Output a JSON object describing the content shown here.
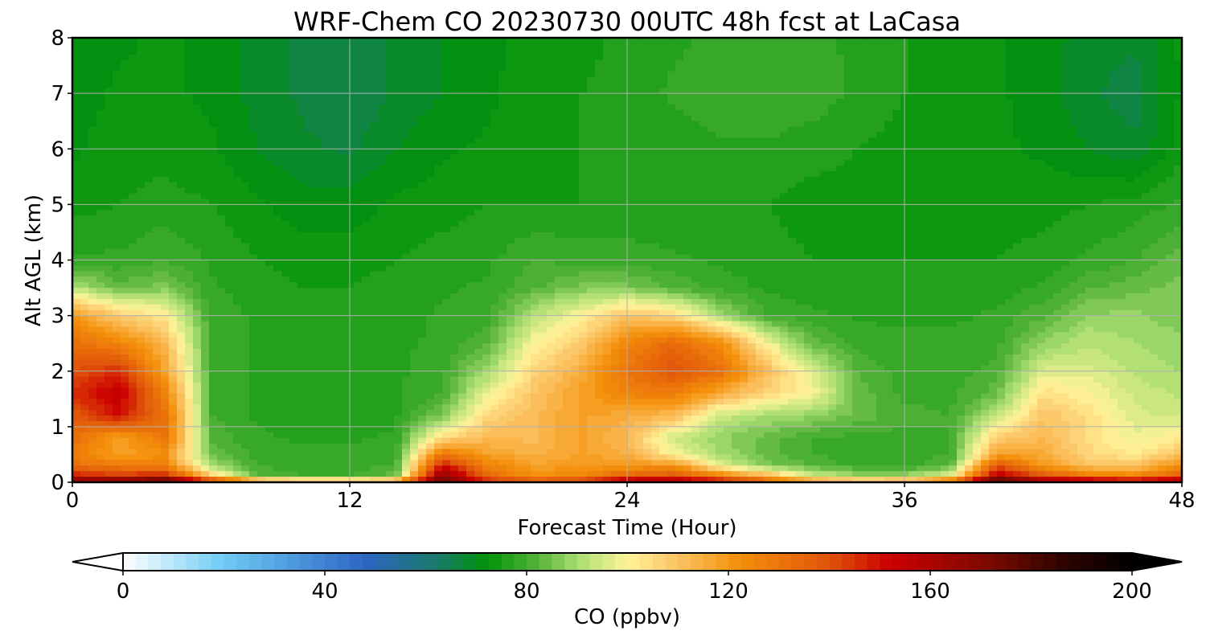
{
  "chart_data": {
    "type": "heatmap",
    "title": "WRF-Chem CO  20230730 00UTC 48h fcst at LaCasa",
    "xlabel": "Forecast Time (Hour)",
    "ylabel": "Alt AGL (km)",
    "xlim": [
      0,
      48
    ],
    "ylim": [
      0,
      8
    ],
    "xticks": [
      0,
      12,
      24,
      36,
      48
    ],
    "yticks": [
      0,
      1,
      2,
      3,
      4,
      5,
      6,
      7,
      8
    ],
    "grid": true,
    "colorbar": {
      "label": "CO  (ppbv)",
      "range": [
        0,
        200
      ],
      "ticks": [
        0,
        40,
        80,
        120,
        160,
        200
      ],
      "extend": "both",
      "stops": [
        {
          "v": 0,
          "c": "#ffffff"
        },
        {
          "v": 20,
          "c": "#6ecbf5"
        },
        {
          "v": 48,
          "c": "#2d64c4"
        },
        {
          "v": 62,
          "c": "#1b7a6c"
        },
        {
          "v": 72,
          "c": "#00920a"
        },
        {
          "v": 82,
          "c": "#52b23a"
        },
        {
          "v": 90,
          "c": "#a8dd70"
        },
        {
          "v": 100,
          "c": "#fff49a"
        },
        {
          "v": 110,
          "c": "#fcc363"
        },
        {
          "v": 122,
          "c": "#f4900a"
        },
        {
          "v": 140,
          "c": "#e0540a"
        },
        {
          "v": 152,
          "c": "#cc0000"
        },
        {
          "v": 172,
          "c": "#7a0a00"
        },
        {
          "v": 186,
          "c": "#300400"
        },
        {
          "v": 200,
          "c": "#000000"
        }
      ]
    },
    "x": [
      0,
      2,
      4,
      6,
      8,
      10,
      12,
      14,
      16,
      18,
      20,
      22,
      24,
      26,
      28,
      30,
      32,
      34,
      36,
      38,
      40,
      42,
      44,
      46,
      48
    ],
    "y": [
      0,
      0.1,
      0.3,
      0.5,
      0.8,
      1.2,
      1.6,
      2,
      2.5,
      3,
      3.5,
      4,
      5,
      6,
      7,
      8
    ],
    "z": [
      [
        180,
        180,
        192,
        160,
        135,
        126,
        126,
        132,
        180,
        150,
        146,
        150,
        168,
        170,
        160,
        140,
        128,
        124,
        126,
        140,
        190,
        172,
        170,
        166,
        168
      ],
      [
        150,
        146,
        150,
        110,
        82,
        80,
        80,
        84,
        170,
        134,
        122,
        126,
        136,
        140,
        128,
        116,
        96,
        90,
        90,
        98,
        160,
        140,
        130,
        126,
        140
      ],
      [
        132,
        128,
        126,
        90,
        80,
        79,
        79,
        80,
        150,
        126,
        118,
        120,
        120,
        122,
        98,
        86,
        82,
        79,
        79,
        82,
        140,
        120,
        110,
        110,
        124
      ],
      [
        128,
        118,
        122,
        84,
        79,
        78,
        78,
        79,
        130,
        118,
        114,
        118,
        115,
        100,
        90,
        84,
        80,
        79,
        79,
        80,
        118,
        116,
        106,
        102,
        110
      ],
      [
        132,
        118,
        130,
        82,
        78,
        77,
        77,
        78,
        105,
        112,
        112,
        118,
        112,
        94,
        88,
        84,
        80,
        79,
        79,
        80,
        108,
        112,
        104,
        98,
        102
      ],
      [
        138,
        150,
        132,
        80,
        77,
        76,
        76,
        77,
        86,
        106,
        112,
        118,
        116,
        112,
        94,
        90,
        88,
        84,
        81,
        80,
        92,
        110,
        104,
        96,
        94
      ],
      [
        145,
        155,
        126,
        80,
        77,
        76,
        76,
        77,
        80,
        98,
        110,
        118,
        126,
        128,
        116,
        106,
        100,
        84,
        79,
        79,
        84,
        104,
        100,
        94,
        92
      ],
      [
        140,
        146,
        118,
        80,
        77,
        76,
        76,
        77,
        79,
        90,
        106,
        116,
        130,
        140,
        132,
        112,
        96,
        82,
        79,
        79,
        81,
        96,
        96,
        92,
        90
      ],
      [
        132,
        126,
        112,
        80,
        77,
        76,
        76,
        77,
        78,
        82,
        100,
        108,
        126,
        134,
        124,
        100,
        84,
        79,
        78,
        78,
        79,
        88,
        92,
        90,
        88
      ],
      [
        120,
        108,
        102,
        79,
        77,
        76,
        76,
        76,
        78,
        79,
        92,
        100,
        110,
        106,
        90,
        80,
        78,
        77,
        77,
        77,
        78,
        82,
        88,
        88,
        86
      ],
      [
        92,
        84,
        86,
        78,
        76,
        75,
        75,
        76,
        77,
        78,
        82,
        86,
        86,
        82,
        79,
        77,
        76,
        76,
        76,
        76,
        76,
        78,
        82,
        84,
        86
      ],
      [
        78,
        78,
        80,
        77,
        75,
        74,
        74,
        75,
        76,
        77,
        80,
        79,
        79,
        78,
        77,
        76,
        75,
        75,
        75,
        75,
        75,
        76,
        78,
        80,
        84
      ],
      [
        74,
        75,
        76,
        75,
        73,
        71,
        71,
        73,
        74,
        75,
        75,
        75,
        75,
        75,
        75,
        75,
        74,
        74,
        74,
        74,
        74,
        74,
        75,
        76,
        78
      ],
      [
        72,
        74,
        74,
        73,
        70,
        68,
        67,
        70,
        72,
        73,
        74,
        75,
        75,
        76,
        77,
        77,
        76,
        75,
        74,
        73,
        73,
        72,
        70,
        68,
        74
      ],
      [
        71,
        73,
        73,
        72,
        69,
        67,
        65,
        68,
        70,
        72,
        74,
        75,
        76,
        78,
        79,
        80,
        79,
        77,
        75,
        74,
        73,
        71,
        68,
        66,
        73
      ],
      [
        70,
        72,
        73,
        72,
        69,
        67,
        66,
        68,
        70,
        72,
        73,
        74,
        76,
        77,
        78,
        79,
        78,
        77,
        75,
        74,
        73,
        71,
        69,
        68,
        73
      ]
    ]
  }
}
